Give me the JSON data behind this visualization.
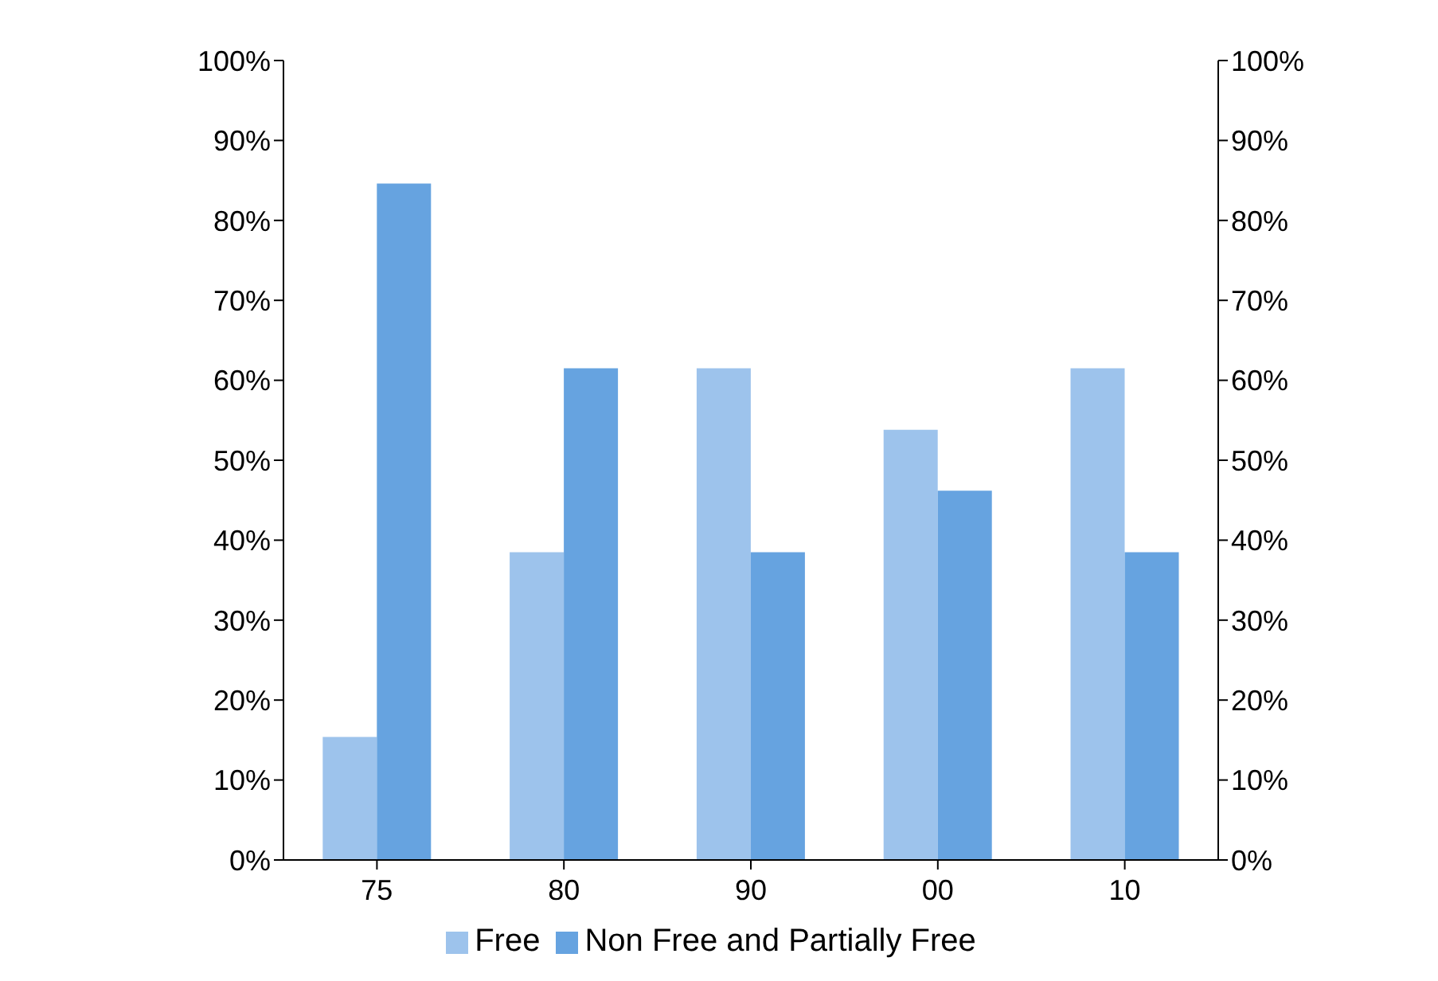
{
  "chart_data": {
    "type": "bar",
    "categories": [
      "75",
      "80",
      "90",
      "00",
      "10"
    ],
    "series": [
      {
        "name": "Free",
        "color": "#9dc3ec",
        "values": [
          15.4,
          38.5,
          61.5,
          53.8,
          61.5
        ]
      },
      {
        "name": "Non Free and Partially Free",
        "color": "#66a3e0",
        "values": [
          84.6,
          61.5,
          38.5,
          46.2,
          38.5
        ]
      }
    ],
    "ylim": [
      0,
      100
    ],
    "yticks": [
      {
        "value": 0,
        "label": "0%"
      },
      {
        "value": 10,
        "label": "10%"
      },
      {
        "value": 20,
        "label": "20%"
      },
      {
        "value": 30,
        "label": "30%"
      },
      {
        "value": 40,
        "label": "40%"
      },
      {
        "value": 50,
        "label": "50%"
      },
      {
        "value": 60,
        "label": "60%"
      },
      {
        "value": 70,
        "label": "70%"
      },
      {
        "value": 80,
        "label": "80%"
      },
      {
        "value": 90,
        "label": "90%"
      },
      {
        "value": 100,
        "label": "100%"
      }
    ],
    "y2lim": [
      0,
      100
    ],
    "y2ticks": [
      {
        "value": 0,
        "label": "0%"
      },
      {
        "value": 10,
        "label": "10%"
      },
      {
        "value": 20,
        "label": "20%"
      },
      {
        "value": 30,
        "label": "30%"
      },
      {
        "value": 40,
        "label": "40%"
      },
      {
        "value": 50,
        "label": "50%"
      },
      {
        "value": 60,
        "label": "60%"
      },
      {
        "value": 70,
        "label": "70%"
      },
      {
        "value": 80,
        "label": "80%"
      },
      {
        "value": 90,
        "label": "90%"
      },
      {
        "value": 100,
        "label": "100%"
      }
    ],
    "grid": false,
    "legend": "bottom"
  }
}
